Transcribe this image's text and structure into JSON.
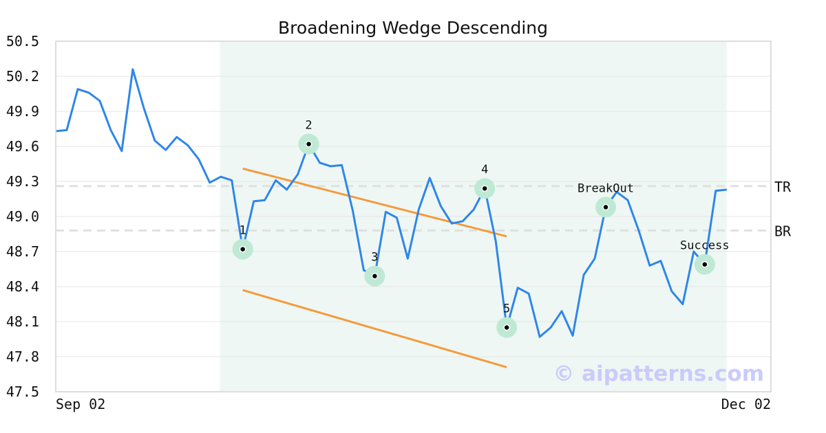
{
  "chart_data": {
    "type": "line",
    "title": "Broadening Wedge Descending",
    "xlabel": "",
    "ylabel": "",
    "ylim": [
      47.5,
      50.5
    ],
    "yticks": [
      "47.5",
      "47.8",
      "48.1",
      "48.4",
      "48.7",
      "49.0",
      "49.3",
      "49.6",
      "49.9",
      "50.2",
      "50.5"
    ],
    "xtick_labels": [
      {
        "index": 0,
        "label": "Sep 02"
      },
      {
        "index": 65,
        "label": "Dec 02"
      }
    ],
    "x_count": 66,
    "grid": true,
    "series": [
      {
        "name": "price",
        "color": "#2e86e8",
        "values": [
          49.73,
          49.74,
          50.09,
          50.06,
          49.99,
          49.74,
          49.56,
          50.26,
          49.93,
          49.65,
          49.57,
          49.68,
          49.61,
          49.49,
          49.29,
          49.34,
          49.31,
          48.72,
          49.13,
          49.14,
          49.31,
          49.23,
          49.36,
          49.62,
          49.46,
          49.43,
          49.44,
          49.05,
          48.54,
          48.49,
          49.04,
          48.99,
          48.64,
          49.06,
          49.33,
          49.09,
          48.94,
          48.96,
          49.06,
          49.24,
          48.79,
          48.05,
          48.39,
          48.34,
          47.97,
          48.05,
          48.19,
          47.98,
          48.5,
          48.64,
          49.08,
          49.21,
          49.14,
          48.88,
          48.58,
          48.62,
          48.36,
          48.25,
          48.7,
          48.59,
          49.22,
          49.23
        ]
      }
    ],
    "pattern_region": {
      "start_index": 15,
      "end_index": 61,
      "color": "#eef7f3"
    },
    "trend_lines": [
      {
        "name": "upper",
        "color": "#f59a3c",
        "from": [
          17,
          49.41
        ],
        "to": [
          41,
          48.83
        ]
      },
      {
        "name": "lower",
        "color": "#f59a3c",
        "from": [
          17,
          48.37
        ],
        "to": [
          41,
          47.71
        ]
      }
    ],
    "levels": [
      {
        "label": "TR",
        "value": 49.26
      },
      {
        "label": "BR",
        "value": 48.88
      }
    ],
    "markers": [
      {
        "label": "1",
        "index": 17,
        "value": 48.72
      },
      {
        "label": "2",
        "index": 23,
        "value": 49.62
      },
      {
        "label": "3",
        "index": 29,
        "value": 48.49
      },
      {
        "label": "4",
        "index": 39,
        "value": 49.24
      },
      {
        "label": "5",
        "index": 41,
        "value": 48.05
      },
      {
        "label": "BreakOut",
        "index": 50,
        "value": 49.08
      },
      {
        "label": "Success",
        "index": 59,
        "value": 48.59
      }
    ],
    "watermark": "© aipatterns.com"
  }
}
